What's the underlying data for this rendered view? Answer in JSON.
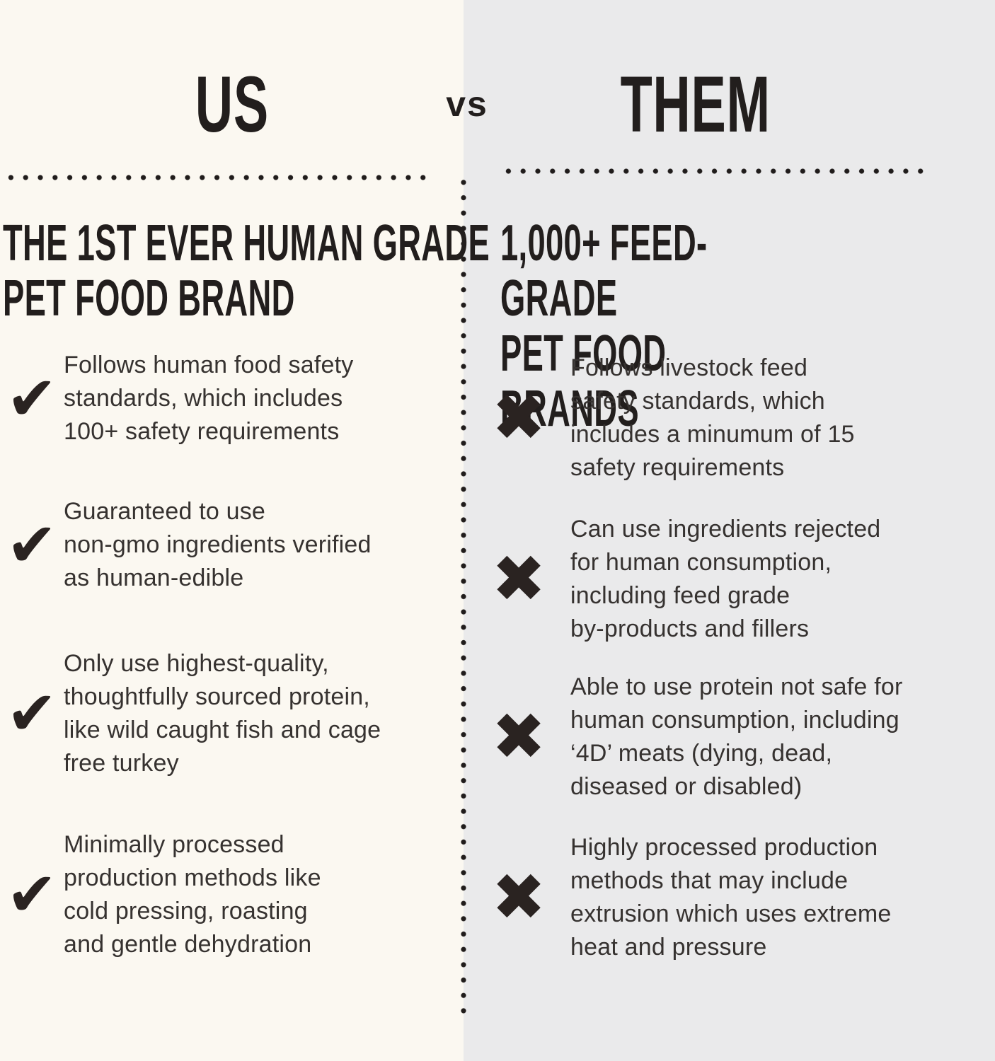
{
  "header": {
    "us_title": "US",
    "vs_label": "vs",
    "them_title": "THEM"
  },
  "icons": {
    "check": "✔",
    "cross": "✖"
  },
  "colors": {
    "left_background": "#fbf8f1",
    "right_background": "#eaeaeb",
    "ink": "#221e1d",
    "body_text": "#363230"
  },
  "left": {
    "heading": "THE 1ST EVER HUMAN GRADE\nPET FOOD BRAND",
    "items": [
      {
        "icon": "check-icon",
        "text": "Follows human food safety\nstandards, which includes\n100+ safety requirements"
      },
      {
        "icon": "check-icon",
        "text": "Guaranteed to use\nnon-gmo ingredients verified\nas human-edible"
      },
      {
        "icon": "check-icon",
        "text": "Only use highest-quality,\nthoughtfully sourced protein,\nlike wild caught fish and cage\nfree turkey"
      },
      {
        "icon": "check-icon",
        "text": "Minimally processed\nproduction methods like\ncold pressing, roasting\nand gentle dehydration"
      }
    ]
  },
  "right": {
    "heading": "1,000+ FEED-GRADE\nPET FOOD BRANDS",
    "items": [
      {
        "icon": "cross-icon",
        "text": "Follows livestock feed\nsafety standards, which\nincludes a minumum of 15\nsafety requirements"
      },
      {
        "icon": "cross-icon",
        "text": "Can use ingredients rejected\nfor human consumption,\nincluding feed grade\nby-products and fillers"
      },
      {
        "icon": "cross-icon",
        "text": "Able to use protein not safe for\nhuman consumption, including\n‘4D’ meats (dying, dead,\ndiseased or disabled)"
      },
      {
        "icon": "cross-icon",
        "text": "Highly processed production\nmethods that may include\nextrusion which uses extreme\nheat and pressure"
      }
    ]
  }
}
